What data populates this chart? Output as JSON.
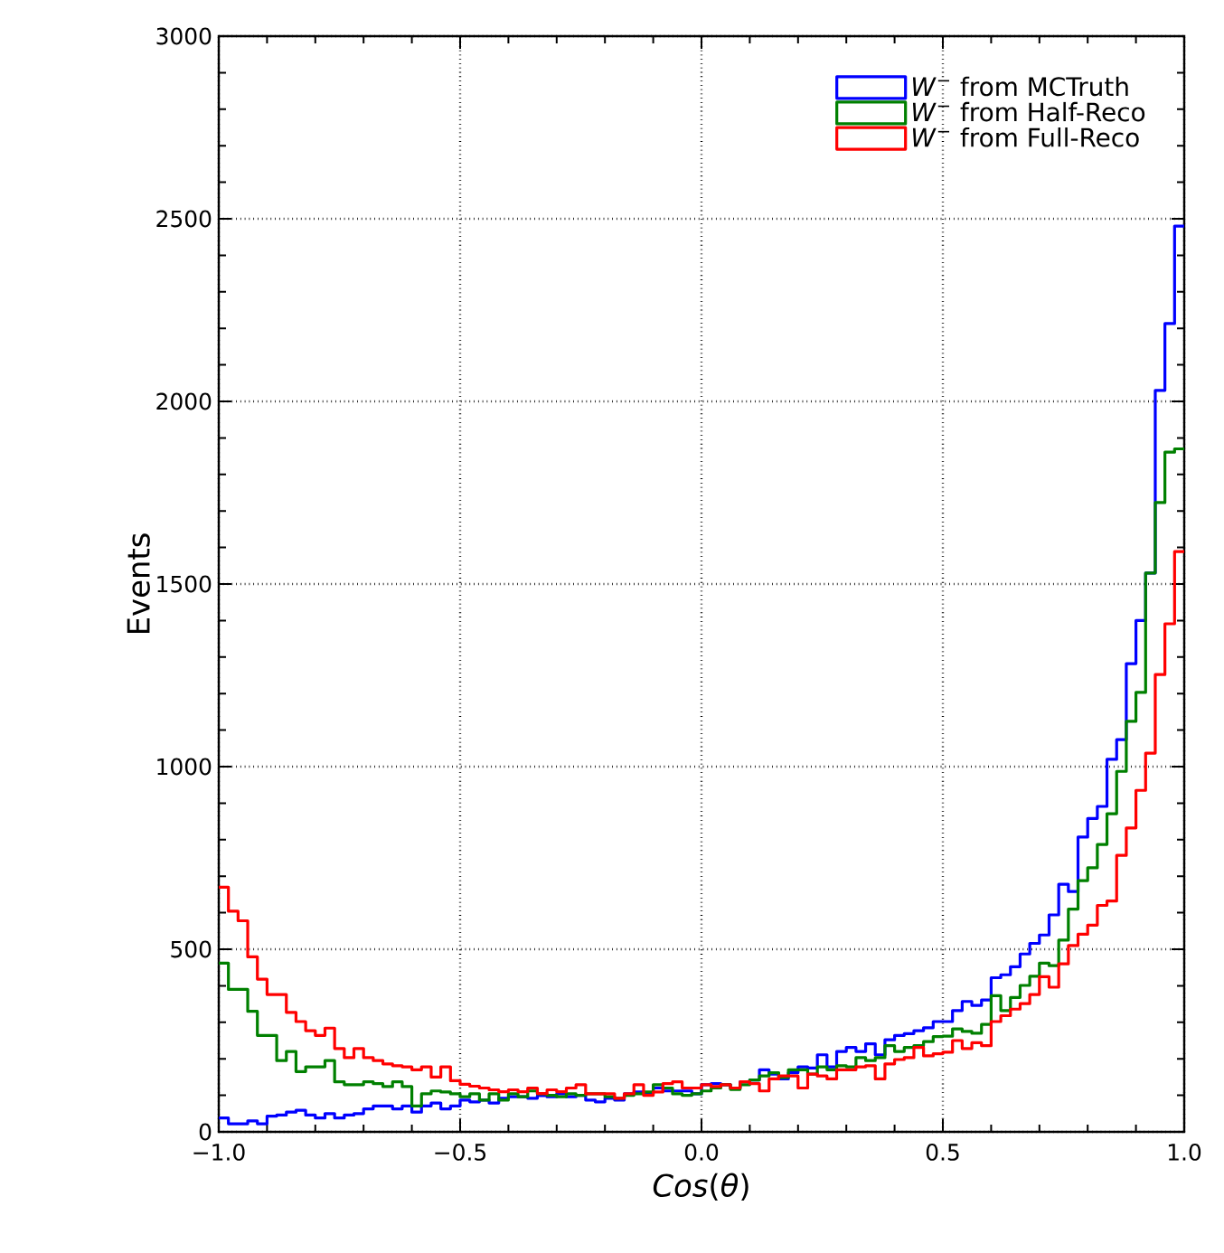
{
  "chart_data": {
    "type": "histogram",
    "xlabel": "*Cos*(*θ*)",
    "ylabel": "Events",
    "bins": [
      -1,
      -0.98,
      -0.96,
      -0.94,
      -0.92,
      -0.9,
      -0.88,
      -0.86,
      -0.84,
      -0.82,
      -0.8,
      -0.78,
      -0.76,
      -0.74,
      -0.72,
      -0.7,
      -0.68,
      -0.66,
      -0.64,
      -0.62,
      -0.6,
      -0.58,
      -0.56,
      -0.54,
      -0.52,
      -0.5,
      -0.48,
      -0.46,
      -0.44,
      -0.42,
      -0.4,
      -0.38,
      -0.36,
      -0.34,
      -0.32,
      -0.3,
      -0.28,
      -0.26,
      -0.24,
      -0.22,
      -0.2,
      -0.18,
      -0.16,
      -0.14,
      -0.12,
      -0.1,
      -0.08,
      -0.06,
      -0.04,
      -0.02,
      0,
      0.02,
      0.04,
      0.06,
      0.08,
      0.1,
      0.12,
      0.14,
      0.16,
      0.18,
      0.2,
      0.22,
      0.24,
      0.26,
      0.28,
      0.3,
      0.32,
      0.34,
      0.36,
      0.38,
      0.4,
      0.42,
      0.44,
      0.46,
      0.48,
      0.5,
      0.52,
      0.54,
      0.56,
      0.58,
      0.6,
      0.62,
      0.64,
      0.66,
      0.68,
      0.7,
      0.72,
      0.74,
      0.76,
      0.78,
      0.8,
      0.82,
      0.84,
      0.86,
      0.88,
      0.9,
      0.92,
      0.94,
      0.96,
      0.98,
      1
    ],
    "series": [
      {
        "name": "*W*$^{−}$ from MCTruth",
        "color": "#0000ff",
        "values": [
          38,
          22,
          22,
          30,
          22,
          43,
          46,
          54,
          59,
          46,
          38,
          50,
          38,
          46,
          50,
          63,
          71,
          71,
          63,
          71,
          54,
          71,
          79,
          63,
          71,
          87,
          82,
          87,
          79,
          92,
          96,
          96,
          92,
          99,
          96,
          104,
          96,
          100,
          87,
          82,
          92,
          87,
          104,
          109,
          104,
          120,
          112,
          112,
          112,
          104,
          129,
          132,
          129,
          120,
          137,
          142,
          170,
          158,
          145,
          162,
          178,
          175,
          211,
          178,
          220,
          231,
          220,
          241,
          211,
          252,
          264,
          269,
          277,
          285,
          302,
          302,
          332,
          357,
          346,
          361,
          422,
          430,
          452,
          487,
          516,
          539,
          594,
          678,
          658,
          807,
          858,
          891,
          1020,
          1074,
          1282,
          1400,
          1530,
          2030,
          2213,
          2480
        ]
      },
      {
        "name": "*W*$^{−}$ from Half-Reco",
        "color": "#008000",
        "values": [
          462,
          390,
          390,
          330,
          264,
          264,
          195,
          220,
          165,
          178,
          178,
          195,
          137,
          129,
          129,
          137,
          132,
          124,
          137,
          124,
          71,
          104,
          112,
          109,
          104,
          96,
          104,
          87,
          104,
          87,
          104,
          96,
          112,
          104,
          100,
          96,
          104,
          100,
          104,
          104,
          96,
          92,
          100,
          104,
          109,
          129,
          120,
          104,
          100,
          104,
          112,
          120,
          129,
          116,
          129,
          142,
          153,
          162,
          149,
          170,
          170,
          158,
          178,
          170,
          181,
          178,
          203,
          195,
          203,
          236,
          220,
          231,
          236,
          247,
          261,
          262,
          282,
          275,
          270,
          294,
          373,
          332,
          368,
          401,
          426,
          462,
          455,
          525,
          610,
          688,
          723,
          787,
          871,
          987,
          1124,
          1203,
          1530,
          1723,
          1861,
          1870
        ]
      },
      {
        "name": "*W*$^{−}$ from Full-Reco",
        "color": "#ff0000",
        "values": [
          670,
          604,
          578,
          479,
          418,
          376,
          376,
          327,
          302,
          277,
          264,
          284,
          228,
          203,
          228,
          203,
          195,
          186,
          181,
          178,
          170,
          178,
          150,
          178,
          140,
          130,
          125,
          120,
          115,
          110,
          115,
          110,
          120,
          105,
          115,
          110,
          120,
          129,
          104,
          104,
          104,
          92,
          104,
          129,
          100,
          109,
          132,
          137,
          120,
          120,
          129,
          124,
          129,
          120,
          137,
          132,
          112,
          145,
          153,
          153,
          120,
          158,
          153,
          145,
          170,
          170,
          178,
          181,
          145,
          186,
          198,
          203,
          231,
          208,
          214,
          218,
          250,
          228,
          244,
          236,
          302,
          318,
          336,
          351,
          376,
          425,
          396,
          460,
          510,
          541,
          566,
          620,
          632,
          757,
          832,
          935,
          1037,
          1252,
          1391,
          1589
        ]
      }
    ],
    "xlim": [
      -1,
      1
    ],
    "ylim": [
      0,
      3000
    ],
    "xticks": [
      {
        "value": -1,
        "label": "−1.0"
      },
      {
        "value": -0.5,
        "label": "−0.5"
      },
      {
        "value": 0,
        "label": "0.0"
      },
      {
        "value": 0.5,
        "label": "0.5"
      },
      {
        "value": 1,
        "label": "1.0"
      }
    ],
    "yticks": [
      0,
      500,
      1000,
      1500,
      2000,
      2500,
      3000
    ],
    "grid": true,
    "legend": "top right"
  }
}
